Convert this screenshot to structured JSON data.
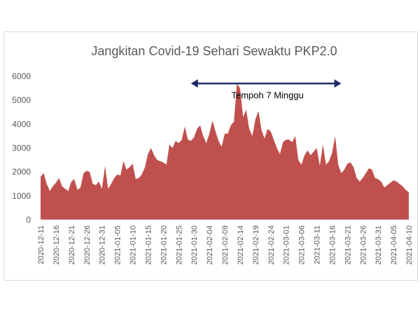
{
  "chart_data": {
    "type": "area",
    "title": "Jangkitan Covid-19 Sehari Sewaktu PKP2.0",
    "xlabel": "",
    "ylabel": "",
    "ylim": [
      0,
      6000
    ],
    "yticks": [
      0,
      1000,
      2000,
      3000,
      4000,
      5000,
      6000
    ],
    "xlim": [
      "2020-12-11",
      "2021-04-10"
    ],
    "xticks": [
      "2020-12-11",
      "2020-12-16",
      "2020-12-21",
      "2020-12-26",
      "2020-12-31",
      "2021-01-05",
      "2021-01-10",
      "2021-01-15",
      "2021-01-20",
      "2021-01-25",
      "2021-01-30",
      "2021-02-04",
      "2021-02-09",
      "2021-02-14",
      "2021-02-19",
      "2021-02-24",
      "2021-03-01",
      "2021-03-06",
      "2021-03-11",
      "2021-03-16",
      "2021-03-21",
      "2021-03-26",
      "2021-03-31",
      "2021-04-05",
      "2021-04-10"
    ],
    "grid": false,
    "legend": "none",
    "fill_color": "#c0504d",
    "series": [
      {
        "x": [
          "2020-12-11",
          "2020-12-12",
          "2020-12-13",
          "2020-12-14",
          "2020-12-15",
          "2020-12-16",
          "2020-12-17",
          "2020-12-18",
          "2020-12-19",
          "2020-12-20",
          "2020-12-21",
          "2020-12-22",
          "2020-12-23",
          "2020-12-24",
          "2020-12-25",
          "2020-12-26",
          "2020-12-27",
          "2020-12-28",
          "2020-12-29",
          "2020-12-30",
          "2020-12-31",
          "2021-01-01",
          "2021-01-02",
          "2021-01-03",
          "2021-01-04",
          "2021-01-05",
          "2021-01-06",
          "2021-01-07",
          "2021-01-08",
          "2021-01-09",
          "2021-01-10",
          "2021-01-11",
          "2021-01-12",
          "2021-01-13",
          "2021-01-14",
          "2021-01-15",
          "2021-01-16",
          "2021-01-17",
          "2021-01-18",
          "2021-01-19",
          "2021-01-20",
          "2021-01-21",
          "2021-01-22",
          "2021-01-23",
          "2021-01-24",
          "2021-01-25",
          "2021-01-26",
          "2021-01-27",
          "2021-01-28",
          "2021-01-29",
          "2021-01-30",
          "2021-01-31",
          "2021-02-01",
          "2021-02-02",
          "2021-02-03",
          "2021-02-04",
          "2021-02-05",
          "2021-02-06",
          "2021-02-07",
          "2021-02-08",
          "2021-02-09",
          "2021-02-10",
          "2021-02-11",
          "2021-02-12",
          "2021-02-13",
          "2021-02-14",
          "2021-02-15",
          "2021-02-16",
          "2021-02-17",
          "2021-02-18",
          "2021-02-19",
          "2021-02-20",
          "2021-02-21",
          "2021-02-22",
          "2021-02-23",
          "2021-02-24",
          "2021-02-25",
          "2021-02-26",
          "2021-02-27",
          "2021-02-28",
          "2021-03-01",
          "2021-03-02",
          "2021-03-03",
          "2021-03-04",
          "2021-03-05",
          "2021-03-06",
          "2021-03-07",
          "2021-03-08",
          "2021-03-09",
          "2021-03-10",
          "2021-03-11",
          "2021-03-12",
          "2021-03-13",
          "2021-03-14",
          "2021-03-15",
          "2021-03-16",
          "2021-03-17",
          "2021-03-18",
          "2021-03-19",
          "2021-03-20",
          "2021-03-21",
          "2021-03-22",
          "2021-03-23",
          "2021-03-24",
          "2021-03-25",
          "2021-03-26",
          "2021-03-27",
          "2021-03-28",
          "2021-03-29",
          "2021-03-30",
          "2021-03-31",
          "2021-04-01",
          "2021-04-02",
          "2021-04-03",
          "2021-04-04",
          "2021-04-05",
          "2021-04-06",
          "2021-04-07",
          "2021-04-08",
          "2021-04-09",
          "2021-04-10"
        ],
        "values": [
          1800,
          1950,
          1500,
          1200,
          1400,
          1550,
          1750,
          1400,
          1300,
          1200,
          1600,
          1700,
          1250,
          1350,
          1950,
          2050,
          2000,
          1500,
          1450,
          1600,
          1300,
          2250,
          1300,
          1500,
          1750,
          1900,
          1850,
          2450,
          2100,
          2200,
          2350,
          1700,
          1750,
          1900,
          2200,
          2750,
          3000,
          2700,
          2500,
          2450,
          2400,
          2300,
          3150,
          3000,
          3300,
          3200,
          3350,
          3900,
          3350,
          3300,
          3450,
          3800,
          3950,
          3500,
          3200,
          3600,
          4150,
          3700,
          3300,
          3050,
          3600,
          3600,
          3950,
          4100,
          5700,
          5500,
          4300,
          4600,
          3800,
          3500,
          4200,
          4550,
          3750,
          3400,
          3800,
          3700,
          3350,
          3000,
          2750,
          3250,
          3350,
          3350,
          3250,
          3500,
          2500,
          2300,
          2700,
          2900,
          2700,
          2850,
          3000,
          2250,
          3150,
          2300,
          2450,
          2800,
          3500,
          2300,
          1950,
          2100,
          2350,
          2400,
          2200,
          1750,
          1600,
          1750,
          1950,
          2150,
          2100,
          1750,
          1700,
          1600,
          1350,
          1450,
          1550,
          1650,
          1600,
          1500,
          1400,
          1250,
          1150
        ]
      }
    ],
    "annotation": {
      "text": "Tempoh 7 Minggu",
      "from": "2021-01-29",
      "to": "2021-03-19",
      "y": 5700,
      "color": "#1f2d6b"
    }
  }
}
